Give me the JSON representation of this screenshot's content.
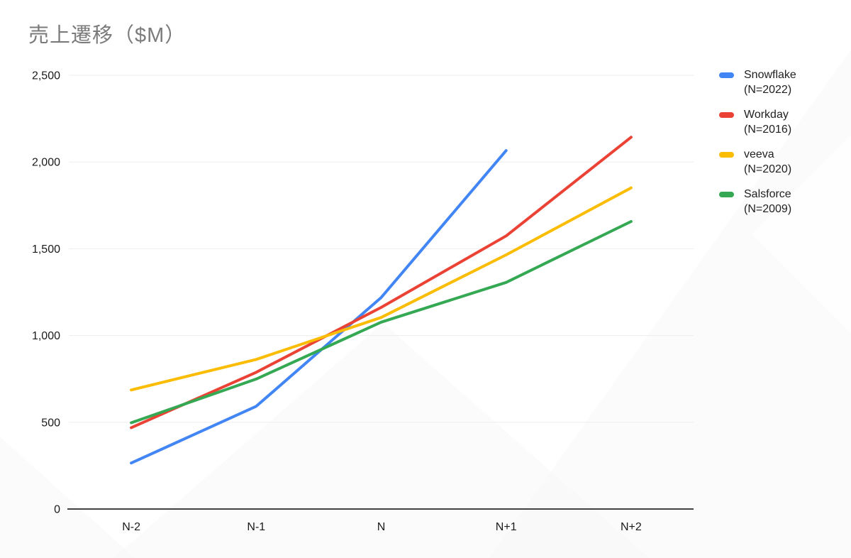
{
  "chart_data": {
    "type": "line",
    "title": "売上遷移（$M）",
    "xlabel": "",
    "ylabel": "",
    "x_categories": [
      "N-2",
      "N-1",
      "N",
      "N+1",
      "N+2"
    ],
    "ylim": [
      0,
      2500
    ],
    "y_ticks": [
      {
        "value": 0,
        "label": "0"
      },
      {
        "value": 500,
        "label": "500"
      },
      {
        "value": 1000,
        "label": "1,000"
      },
      {
        "value": 1500,
        "label": "1,500"
      },
      {
        "value": 2000,
        "label": "2,000"
      },
      {
        "value": 2500,
        "label": "2,500"
      }
    ],
    "grid": "horizontal",
    "legend_position": "right",
    "series": [
      {
        "name": "Snowflake",
        "note": "(N=2022)",
        "color": "#4285f4",
        "values": [
          265,
          592,
          1219,
          2066,
          null
        ]
      },
      {
        "name": "Workday",
        "note": "(N=2016)",
        "color": "#ea4335",
        "values": [
          469,
          788,
          1162,
          1574,
          2143
        ]
      },
      {
        "name": "veeva",
        "note": "(N=2020)",
        "color": "#fbbc04",
        "values": [
          686,
          862,
          1104,
          1465,
          1851
        ]
      },
      {
        "name": "Salsforce",
        "note": "(N=2009)",
        "color": "#34a853",
        "values": [
          497,
          749,
          1077,
          1306,
          1657
        ]
      }
    ]
  }
}
